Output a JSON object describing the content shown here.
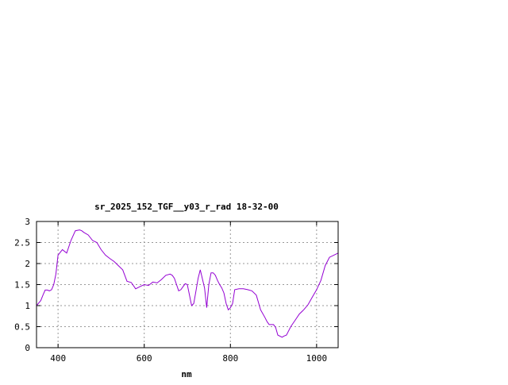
{
  "chart_data": {
    "type": "line",
    "title": "sr_2025_152_TGF__y03_r_rad 18-32-00",
    "xlabel": "nm",
    "ylabel": "",
    "xlim": [
      350,
      1050
    ],
    "ylim": [
      0,
      3
    ],
    "x_ticks": [
      400,
      600,
      800,
      1000
    ],
    "x_tick_labels": [
      "400",
      "600",
      "800",
      "1000"
    ],
    "y_ticks": [
      0,
      0.5,
      1,
      1.5,
      2,
      2.5,
      3
    ],
    "y_tick_labels": [
      "0",
      "0.5",
      "1",
      "1.5",
      "2",
      "2.5",
      "3"
    ],
    "grid": true,
    "line_color": "#9400d3",
    "series": [
      {
        "x": [
          350,
          360,
          365,
          370,
          375,
          380,
          385,
          390,
          395,
          400,
          410,
          420,
          430,
          440,
          450,
          455,
          460,
          470,
          480,
          490,
          500,
          510,
          520,
          530,
          540,
          550,
          560,
          570,
          580,
          590,
          600,
          610,
          620,
          630,
          640,
          650,
          660,
          665,
          670,
          680,
          685,
          690,
          695,
          700,
          710,
          715,
          720,
          725,
          730,
          740,
          745,
          750,
          755,
          760,
          765,
          770,
          775,
          780,
          785,
          790,
          795,
          800,
          805,
          810,
          820,
          830,
          840,
          850,
          860,
          870,
          880,
          885,
          890,
          895,
          900,
          905,
          910,
          920,
          925,
          930,
          935,
          940,
          950,
          960,
          970,
          980,
          990,
          1000,
          1010,
          1020,
          1030,
          1040,
          1050
        ],
        "y": [
          1.0,
          1.12,
          1.25,
          1.37,
          1.37,
          1.35,
          1.38,
          1.5,
          1.75,
          2.2,
          2.33,
          2.25,
          2.55,
          2.78,
          2.8,
          2.78,
          2.74,
          2.68,
          2.55,
          2.5,
          2.33,
          2.2,
          2.12,
          2.05,
          1.95,
          1.85,
          1.58,
          1.55,
          1.4,
          1.45,
          1.5,
          1.48,
          1.56,
          1.54,
          1.62,
          1.72,
          1.75,
          1.72,
          1.65,
          1.35,
          1.38,
          1.45,
          1.52,
          1.5,
          1.0,
          1.05,
          1.35,
          1.65,
          1.85,
          1.42,
          0.95,
          1.5,
          1.78,
          1.78,
          1.72,
          1.6,
          1.5,
          1.42,
          1.3,
          1.05,
          0.9,
          0.95,
          1.05,
          1.38,
          1.4,
          1.4,
          1.38,
          1.35,
          1.25,
          0.9,
          0.72,
          0.62,
          0.55,
          0.55,
          0.55,
          0.48,
          0.3,
          0.25,
          0.28,
          0.3,
          0.4,
          0.5,
          0.65,
          0.8,
          0.9,
          1.02,
          1.2,
          1.38,
          1.6,
          1.95,
          2.15,
          2.2,
          2.25
        ]
      }
    ]
  }
}
